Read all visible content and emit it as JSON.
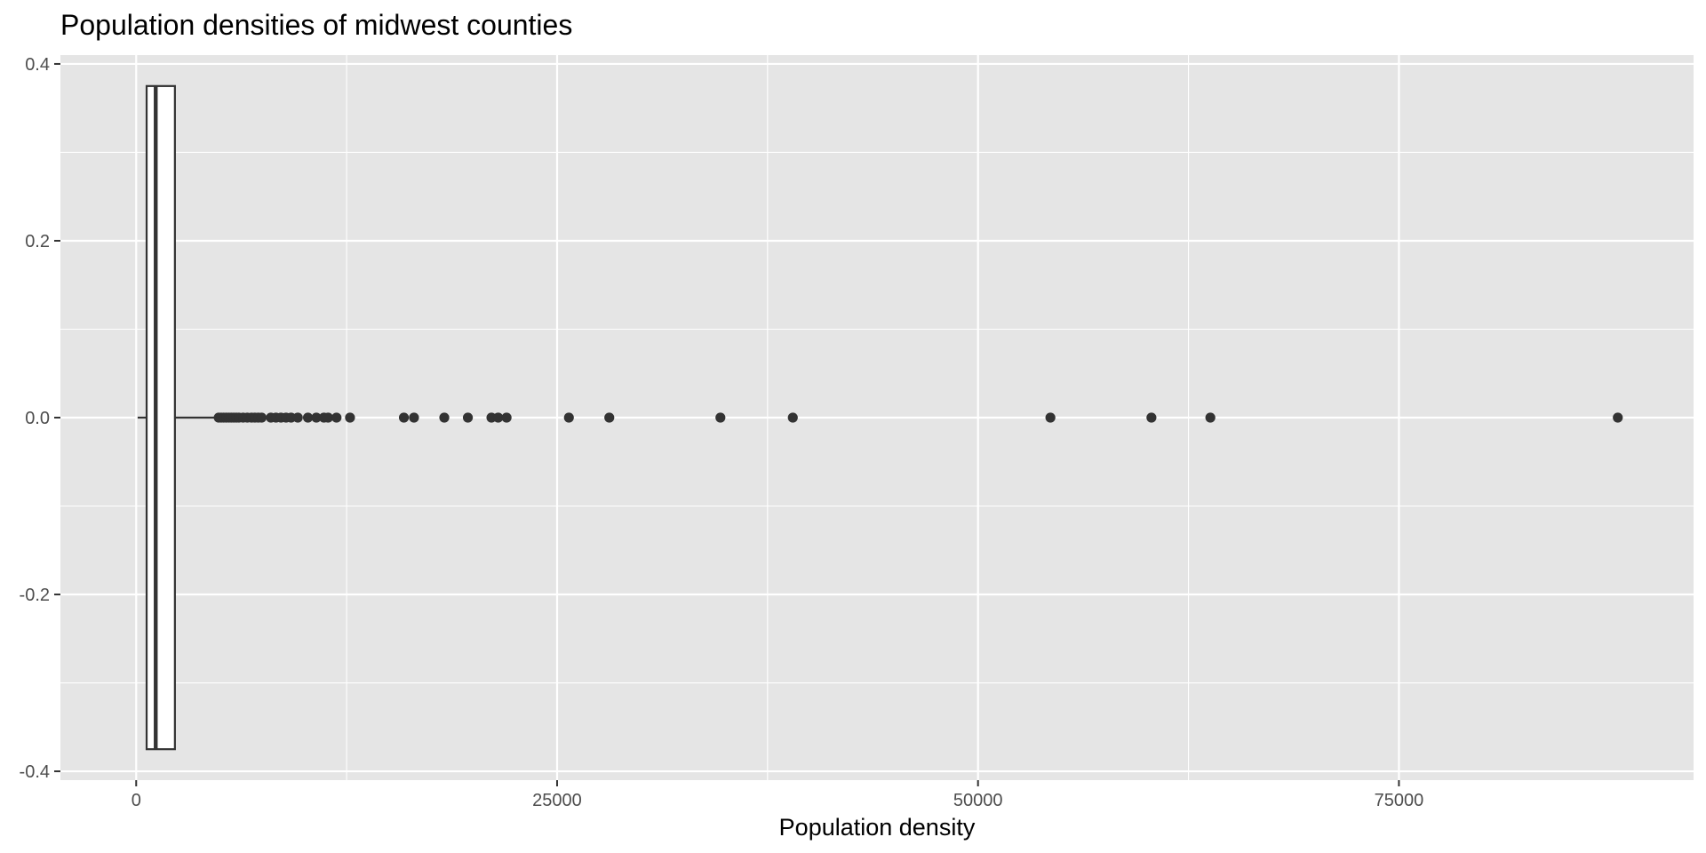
{
  "chart_data": {
    "type": "boxplot",
    "orientation": "horizontal",
    "title": "Population densities of midwest counties",
    "xlabel": "Population density",
    "ylabel": "",
    "xlim": [
      -4500,
      92500
    ],
    "ylim": [
      -0.41,
      0.41
    ],
    "x_ticks": [
      0,
      25000,
      50000,
      75000
    ],
    "x_minor_ticks": [
      12500,
      37500,
      62500
    ],
    "y_ticks": [
      -0.4,
      -0.2,
      0.0,
      0.2,
      0.4
    ],
    "y_tick_labels": [
      "-0.4",
      "-0.2",
      "0.0",
      "0.2",
      "0.4"
    ],
    "y_minor_ticks": [
      -0.3,
      -0.1,
      0.1,
      0.3
    ],
    "grid": true,
    "panel_color": "#e5e5e5",
    "grid_color": "#ffffff",
    "mark_color": "#333333",
    "box": {
      "whisker_low": 85,
      "q1": 620,
      "median": 1160,
      "q3": 2300,
      "whisker_high": 4800,
      "y_center": 0.0,
      "y_low": -0.375,
      "y_high": 0.375
    },
    "outliers": [
      4900,
      5050,
      5200,
      5350,
      5500,
      5650,
      5800,
      5950,
      6100,
      6350,
      6600,
      6850,
      7050,
      7250,
      7450,
      8000,
      8300,
      8600,
      8900,
      9200,
      9600,
      10200,
      10700,
      11150,
      11400,
      11900,
      12700,
      15900,
      16500,
      18300,
      19700,
      21100,
      21500,
      22000,
      25700,
      28100,
      34700,
      39000,
      54300,
      60300,
      63800,
      88000
    ]
  }
}
